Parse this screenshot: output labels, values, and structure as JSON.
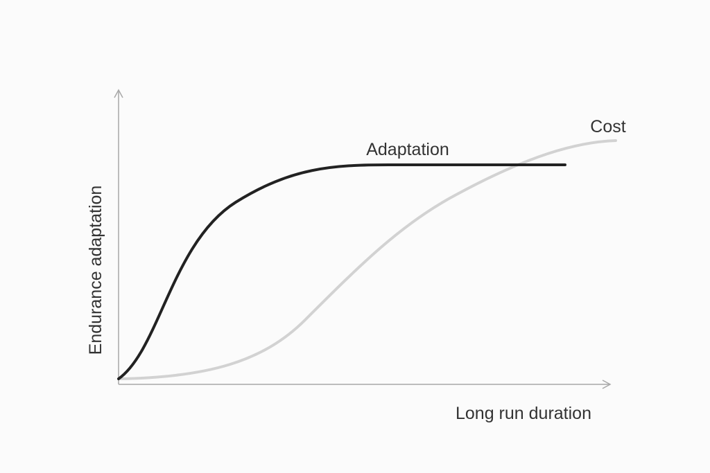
{
  "axes": {
    "y_label": "Endurance adaptation",
    "x_label": "Long run duration"
  },
  "curves": {
    "adaptation": "Adaptation",
    "cost": "Cost"
  }
}
